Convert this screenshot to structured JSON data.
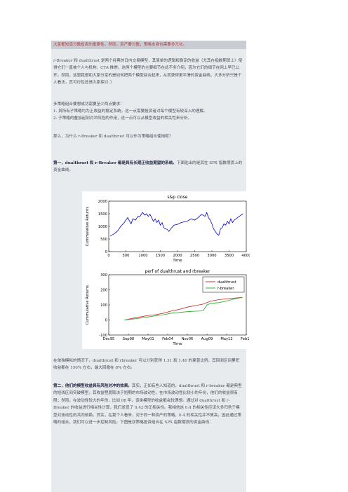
{
  "top_line": "大家都知道分散投资的重要性。然而，资产要分散，策略本身也需要多元化。",
  "para1": "r-Breaker 和 dualthrust 是两个经典的日内交易模型，其简单的逻辑和稳定的收益（尤其在指数期货上）使得它们一直被个人与机构、CTA 推崇。这两个模型的主要细节在此不多介绍，因为它们的细节在网上早已公开。然而，这里我想和大家分享的是如何把两个模型综合起来，从而获得更平滑的资金曲线。大多分析只是个人看法，其可行性还请大家探讨：）",
  "para2_intro": "多策略组合要想成功需要至少两点要求：",
  "para2_item1": "1. 其所有子策略均为正收益的稳定系统，这一点需要投资者对每个模型有较深入的理解。",
  "para2_item2": "2. 子策略的叠加起到对冲风险的作用，这一点可以从模型收益的相关性来分析。",
  "para3": "那么，为什么 r-Breaker 和 dualthrust 可以作为策略组合使用呢？",
  "para4_bold": "第一，dualthrust 和 r-Breaker 都是具有长期正收益期望的系统。",
  "para4_rest": "下面贴出的是其在 SPX 指数期货上的资金曲线。",
  "para5": "在单独模拟的情况下，dualthrust 和 rbreaker 可以分别获得 1.31 和 1.40 的夏普比例，其回测区间累积收益都在 150% 左右，最大回撤在 8% 左右。",
  "para6_bold": "第二，他们的模型收益具有风险对冲的效果。",
  "para6_rest": "其实，正如有些人知道的，dualthrust 和 r-breaker 都是典型的短线区间突破模型，其收益程度取决于短期的市场波动性。在市场波动性比较小的年份，他们的收益很有限；然而，在波动性较大的年份，比如 08 年，该类模型的收益都会较理想。通过对 dualthrust 和 r-Breaker 的收益进行相关性计算，我们发现了 0.42 的正相关性。我相信这 0.4 的相关性应该大多归咎于模型对波动性的共同依赖。其实，在我个人看来，对于同一种资产的策略，0.4 的相关性并不算高，因此通过策略的组合，我们可以进一步控制风险。下图是双策略投资组合在 SPX 指数期货的资金曲线：",
  "chart_data": [
    {
      "type": "line",
      "title": "s&p close",
      "xlabel": "Time",
      "ylabel": "Cummulative Returns",
      "xlim": [
        0,
        4000
      ],
      "ylim": [
        0,
        2000
      ],
      "xticks": [
        0,
        500,
        1000,
        1500,
        2000,
        2500,
        3000,
        3500,
        4000
      ],
      "yticks": [
        0,
        500,
        1000,
        1500,
        2000
      ],
      "grid": false,
      "series": [
        {
          "color": "#0000cc",
          "x": [
            40,
            150,
            250,
            350,
            450,
            550,
            650,
            700,
            780,
            850,
            900,
            980,
            1050,
            1100,
            1150,
            1200,
            1300,
            1350,
            1400,
            1450,
            1500,
            1550,
            1600,
            1650,
            1700,
            1750,
            1800,
            1900,
            2000,
            2100,
            2200,
            2300,
            2400,
            2500,
            2600,
            2700,
            2800,
            2850,
            2900,
            2950,
            3000,
            3050,
            3100,
            3150,
            3200,
            3250,
            3300,
            3350,
            3400,
            3450,
            3500,
            3550,
            3600,
            3650,
            3700,
            3750,
            3800,
            3850,
            3900
          ],
          "y": [
            620,
            700,
            810,
            1000,
            1150,
            1350,
            1100,
            1300,
            1250,
            1400,
            1380,
            1550,
            1450,
            1500,
            1400,
            1480,
            1200,
            1300,
            1150,
            1250,
            1050,
            1150,
            950,
            900,
            880,
            800,
            900,
            1050,
            1080,
            1150,
            1180,
            1220,
            1300,
            1250,
            1350,
            1480,
            1400,
            1550,
            1350,
            1250,
            1100,
            900,
            800,
            700,
            650,
            900,
            950,
            1100,
            1050,
            1200,
            1100,
            1300,
            1150,
            1250,
            1300,
            1350,
            1400,
            1450,
            1500
          ]
        }
      ]
    },
    {
      "type": "line",
      "title": "perf of dualthrust and rbreaker",
      "xlabel": "Time",
      "ylabel": "Cummulative Returns",
      "categories": [
        "Dec95",
        "Sep98",
        "May01",
        "Feb04",
        "Nov06",
        "Aug09",
        "May12",
        "Feb15"
      ],
      "ylim": [
        -100,
        300
      ],
      "yticks": [
        -100,
        0,
        100,
        200,
        300
      ],
      "legend": "top-right",
      "grid": false,
      "series": [
        {
          "name": "dualthrust",
          "color": "#cc2222",
          "x": [
            0.8,
            1.2,
            1.6,
            2.0,
            2.4,
            2.8,
            3.2,
            3.6,
            4.0,
            4.4,
            4.8,
            5.2,
            5.6,
            6.0,
            6.4,
            6.8
          ],
          "y": [
            0,
            10,
            20,
            30,
            35,
            45,
            60,
            70,
            85,
            95,
            105,
            125,
            135,
            140,
            145,
            150
          ]
        },
        {
          "name": "r-breaker",
          "color": "#22aa22",
          "x": [
            0.8,
            1.2,
            1.6,
            2.0,
            2.4,
            2.8,
            3.2,
            3.6,
            4.0,
            4.4,
            4.8,
            5.0,
            5.2,
            5.6,
            6.0,
            6.4,
            6.8
          ],
          "y": [
            0,
            5,
            12,
            20,
            28,
            35,
            45,
            50,
            55,
            58,
            60,
            100,
            110,
            115,
            125,
            140,
            150
          ]
        }
      ]
    }
  ]
}
